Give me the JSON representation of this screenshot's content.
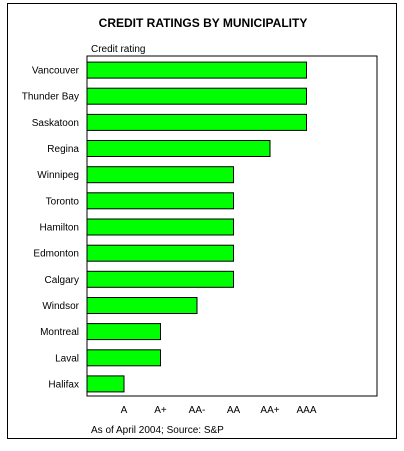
{
  "chart_data": {
    "type": "bar",
    "orientation": "horizontal",
    "title": "CREDIT RATINGS BY MUNICIPALITY",
    "axis_caption": "Credit rating",
    "source_note": "As of April 2004; Source: S&P",
    "rating_scale": [
      "A",
      "A+",
      "AA-",
      "AA",
      "AA+",
      "AAA"
    ],
    "categories": [
      "Vancouver",
      "Thunder Bay",
      "Saskatoon",
      "Regina",
      "Winnipeg",
      "Toronto",
      "Hamilton",
      "Edmonton",
      "Calgary",
      "Windsor",
      "Montreal",
      "Laval",
      "Halifax"
    ],
    "values": [
      "AAA",
      "AAA",
      "AAA",
      "AA+",
      "AA",
      "AA",
      "AA",
      "AA",
      "AA",
      "AA-",
      "A+",
      "A+",
      "A"
    ],
    "bar_color": "#00ff00",
    "grid": false,
    "legend": "none"
  }
}
